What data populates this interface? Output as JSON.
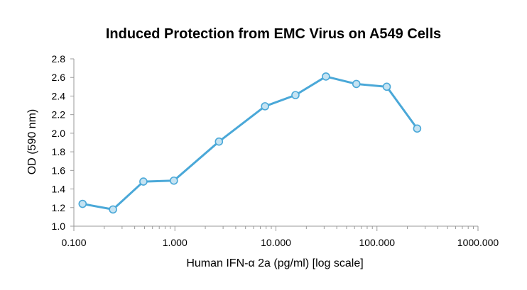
{
  "chart_data": {
    "type": "line",
    "title": "Induced Protection from EMC Virus on A549 Cells",
    "xlabel": "Human IFN-α 2a (pg/ml) [log scale]",
    "ylabel": "OD (590 nm)",
    "x_scale": "log",
    "xlim": [
      0.1,
      1000
    ],
    "ylim": [
      1.0,
      2.8
    ],
    "x_ticks": [
      "0.100",
      "1.000",
      "10.000",
      "100.000",
      "1000.000"
    ],
    "y_ticks": [
      "1.0",
      "1.2",
      "1.4",
      "1.6",
      "1.8",
      "2.0",
      "2.2",
      "2.4",
      "2.6",
      "2.8"
    ],
    "grid": false,
    "series": [
      {
        "color": "#4aa8d8",
        "marker_fill": "#c5e3f2",
        "x": [
          0.122,
          0.244,
          0.488,
          0.977,
          2.73,
          7.8,
          15.6,
          31.25,
          62.5,
          125,
          250
        ],
        "y": [
          1.24,
          1.18,
          1.48,
          1.49,
          1.91,
          2.29,
          2.41,
          2.61,
          2.53,
          2.5,
          2.05
        ]
      }
    ]
  }
}
